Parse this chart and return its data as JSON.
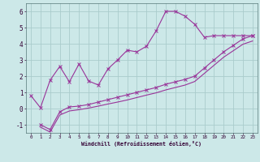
{
  "xlabel": "Windchill (Refroidissement éolien,°C)",
  "bg_color": "#cce8e8",
  "grid_color": "#aacccc",
  "line_color": "#993399",
  "xlim": [
    -0.5,
    23.5
  ],
  "ylim": [
    -1.5,
    6.5
  ],
  "xticks": [
    0,
    1,
    2,
    3,
    4,
    5,
    6,
    7,
    8,
    9,
    10,
    11,
    12,
    13,
    14,
    15,
    16,
    17,
    18,
    19,
    20,
    21,
    22,
    23
  ],
  "yticks": [
    -1,
    0,
    1,
    2,
    3,
    4,
    5,
    6
  ],
  "curve1_x": [
    0,
    1,
    2,
    3,
    4,
    5,
    6,
    7,
    8,
    9,
    10,
    11,
    12,
    13,
    14,
    15,
    16,
    17,
    18,
    19,
    20,
    21,
    22,
    23
  ],
  "curve1_y": [
    0.8,
    0.05,
    1.75,
    2.6,
    1.65,
    2.75,
    1.7,
    1.45,
    2.45,
    3.0,
    3.6,
    3.5,
    3.85,
    4.8,
    6.0,
    6.0,
    5.7,
    5.2,
    4.4,
    4.5,
    4.5,
    4.5,
    4.5,
    4.5
  ],
  "curve2_x": [
    1,
    2,
    3,
    4,
    5,
    6,
    7,
    8,
    9,
    10,
    11,
    12,
    13,
    14,
    15,
    16,
    17,
    18,
    19,
    20,
    21,
    22,
    23
  ],
  "curve2_y": [
    -1.0,
    -1.3,
    -0.2,
    0.1,
    0.15,
    0.25,
    0.4,
    0.55,
    0.7,
    0.85,
    1.0,
    1.15,
    1.3,
    1.5,
    1.65,
    1.8,
    2.0,
    2.5,
    3.0,
    3.5,
    3.9,
    4.3,
    4.5
  ],
  "curve3_x": [
    1,
    2,
    3,
    4,
    5,
    6,
    7,
    8,
    9,
    10,
    11,
    12,
    13,
    14,
    15,
    16,
    17,
    18,
    19,
    20,
    21,
    22,
    23
  ],
  "curve3_y": [
    -1.15,
    -1.45,
    -0.4,
    -0.15,
    -0.07,
    0.03,
    0.15,
    0.28,
    0.4,
    0.53,
    0.68,
    0.83,
    0.97,
    1.15,
    1.3,
    1.45,
    1.67,
    2.17,
    2.67,
    3.17,
    3.57,
    3.97,
    4.17
  ],
  "tick_color": "#330033",
  "label_color": "#330033"
}
